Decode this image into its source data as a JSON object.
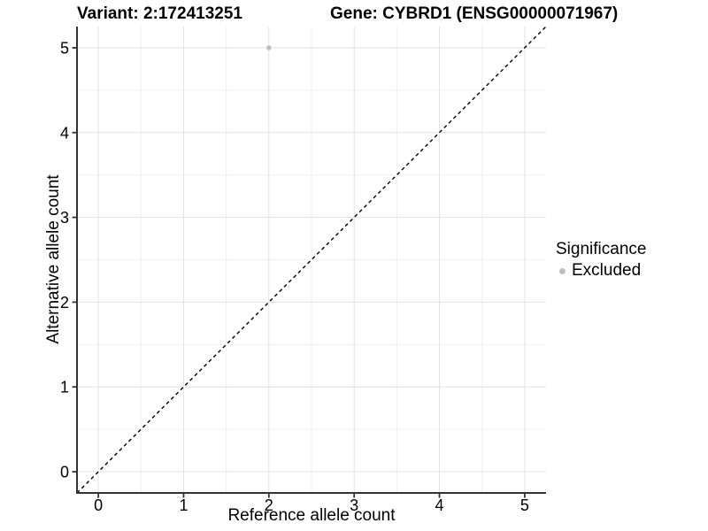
{
  "chart_data": {
    "type": "scatter",
    "title_left": "Variant: 2:172413251",
    "title_right": "Gene: CYBRD1 (ENSG00000071967)",
    "xlabel": "Reference allele count",
    "ylabel": "Alternative allele count",
    "xlim": [
      -0.25,
      5.25
    ],
    "ylim": [
      -0.25,
      5.25
    ],
    "x_ticks": [
      0,
      1,
      2,
      3,
      4,
      5
    ],
    "y_ticks": [
      0,
      1,
      2,
      3,
      4,
      5
    ],
    "x_minor_ticks": [
      0.5,
      1.5,
      2.5,
      3.5,
      4.5
    ],
    "y_minor_ticks": [
      0.5,
      1.5,
      2.5,
      3.5,
      4.5
    ],
    "grid": "major+minor",
    "points": [
      {
        "x": 2,
        "y": 5,
        "series": "Excluded"
      }
    ],
    "reference_line": {
      "type": "identity",
      "style": "dashed",
      "color": "#000000"
    },
    "legend": {
      "title": "Significance",
      "position": "right",
      "items": [
        {
          "label": "Excluded",
          "color": "#bebebe"
        }
      ]
    },
    "colors": {
      "point": "#bebebe",
      "grid_major": "#e2e2e2",
      "grid_minor": "#efefef",
      "axis_line": "#333333",
      "tick_label": "#000000"
    }
  }
}
